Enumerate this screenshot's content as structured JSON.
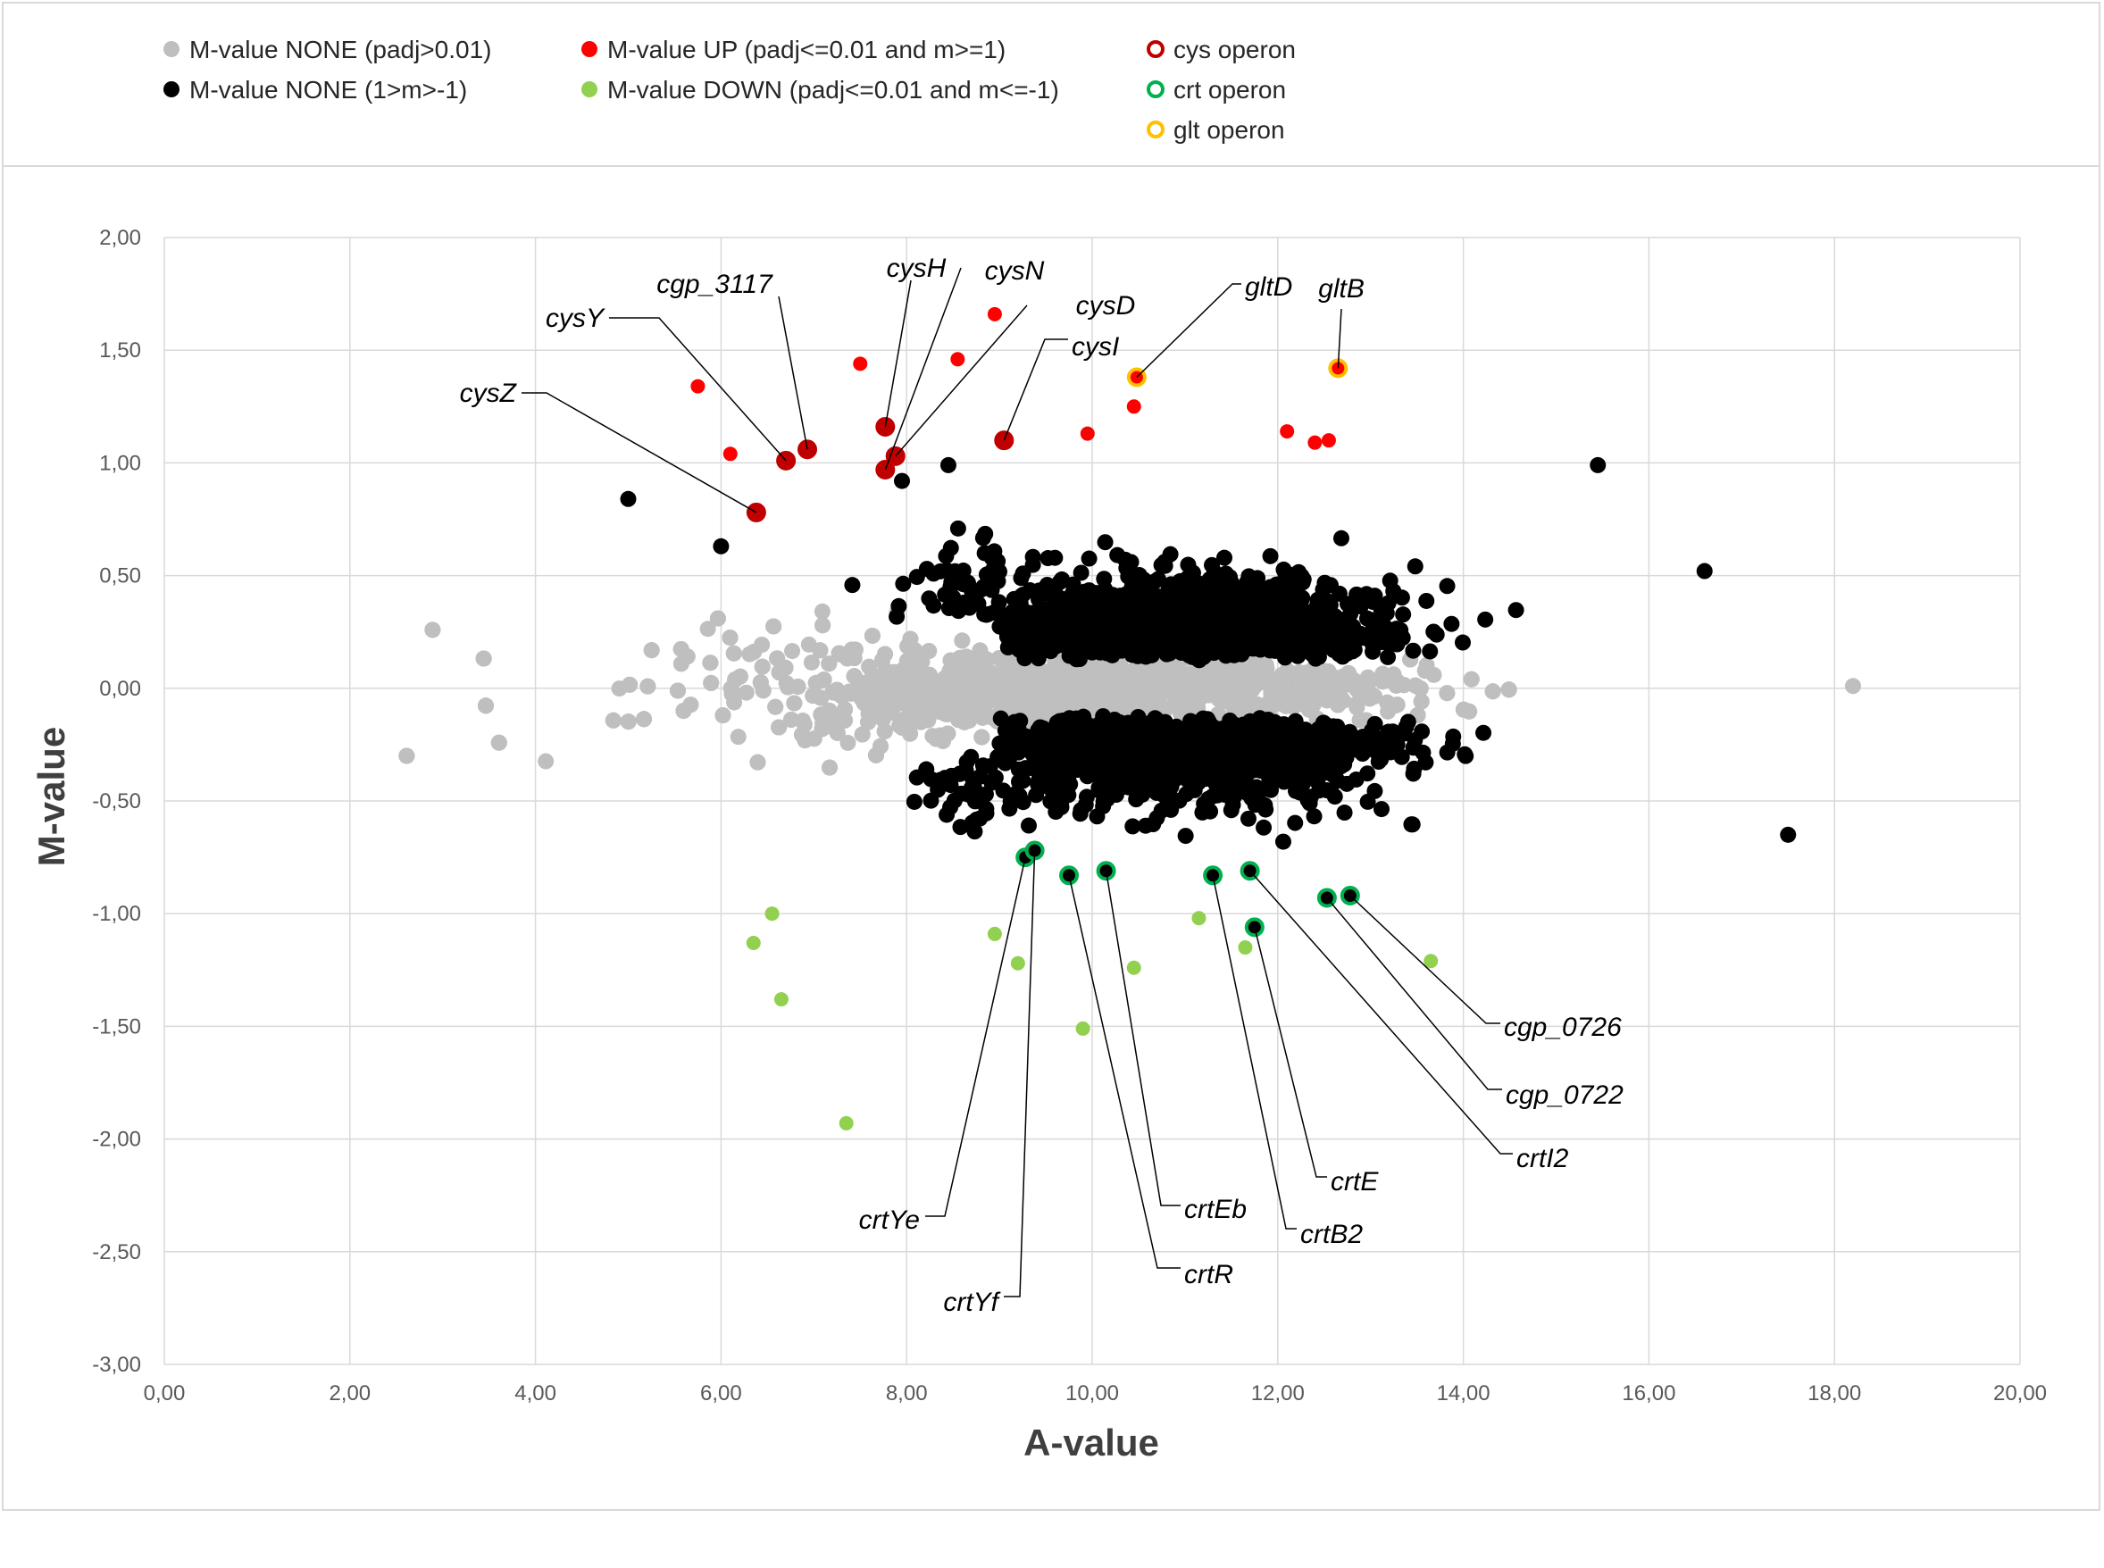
{
  "chart_data": {
    "type": "scatter",
    "xlabel": "A-value",
    "ylabel": "M-value",
    "xlim": [
      0,
      20
    ],
    "ylim": [
      -3,
      2
    ],
    "x_ticks": [
      "0,00",
      "2,00",
      "4,00",
      "6,00",
      "8,00",
      "10,00",
      "12,00",
      "14,00",
      "16,00",
      "18,00",
      "20,00"
    ],
    "y_ticks": [
      "2,00",
      "1,50",
      "1,00",
      "0,50",
      "0,00",
      "-0,50",
      "-1,00",
      "-1,50",
      "-2,00",
      "-2,50",
      "-3,00"
    ],
    "grid": true,
    "legend_position": "top",
    "legend": [
      {
        "key": "none_padj",
        "label": "M-value NONE (padj>0.01)",
        "color": "#bfbfbf",
        "style": "filled"
      },
      {
        "key": "up",
        "label": "M-value UP (padj<=0.01 and m>=1)",
        "color": "#ff0000",
        "style": "filled"
      },
      {
        "key": "cys",
        "label": "cys operon",
        "color": "#c00000",
        "style": "ring"
      },
      {
        "key": "none_m",
        "label": "M-value NONE (1>m>-1)",
        "color": "#000000",
        "style": "filled"
      },
      {
        "key": "down",
        "label": "M-value DOWN (padj<=0.01 and m<=-1)",
        "color": "#92d050",
        "style": "filled"
      },
      {
        "key": "crt",
        "label": "crt operon",
        "color": "#00b050",
        "style": "ring"
      },
      {
        "key": "glt",
        "label": "glt operon",
        "color": "#ffc000",
        "style": "ring"
      }
    ],
    "series": [
      {
        "name": "M-value UP (padj<=0.01 and m>=1)",
        "points": [
          [
            5.75,
            1.34
          ],
          [
            6.1,
            1.04
          ],
          [
            7.5,
            1.44
          ],
          [
            8.55,
            1.46
          ],
          [
            8.95,
            1.66
          ],
          [
            9.95,
            1.13
          ],
          [
            10.45,
            1.25
          ],
          [
            12.1,
            1.14
          ],
          [
            12.4,
            1.09
          ],
          [
            12.55,
            1.1
          ]
        ]
      },
      {
        "name": "M-value DOWN (padj<=0.01 and m<=-1)",
        "points": [
          [
            6.35,
            -1.13
          ],
          [
            6.55,
            -1.0
          ],
          [
            6.65,
            -1.38
          ],
          [
            7.35,
            -1.93
          ],
          [
            8.95,
            -1.09
          ],
          [
            9.2,
            -1.22
          ],
          [
            9.9,
            -1.51
          ],
          [
            10.45,
            -1.24
          ],
          [
            11.15,
            -1.02
          ],
          [
            11.65,
            -1.15
          ],
          [
            13.65,
            -1.21
          ]
        ]
      },
      {
        "name": "cys operon",
        "points": [
          {
            "label": "cysZ",
            "x": 6.38,
            "y": 0.78
          },
          {
            "label": "cysY",
            "x": 6.7,
            "y": 1.01
          },
          {
            "label": "cgp_3117",
            "x": 6.93,
            "y": 1.06
          },
          {
            "label": "cysH",
            "x": 7.77,
            "y": 1.16
          },
          {
            "label": "cysN",
            "x": 7.77,
            "y": 0.97
          },
          {
            "label": "cysD",
            "x": 7.88,
            "y": 1.03
          },
          {
            "label": "cysI",
            "x": 9.05,
            "y": 1.1
          }
        ]
      },
      {
        "name": "glt operon",
        "points": [
          {
            "label": "gltD",
            "x": 10.48,
            "y": 1.38
          },
          {
            "label": "gltB",
            "x": 12.65,
            "y": 1.42
          }
        ]
      },
      {
        "name": "crt operon",
        "points": [
          {
            "label": "crtYe",
            "x": 9.28,
            "y": -0.75
          },
          {
            "label": "crtYf",
            "x": 9.38,
            "y": -0.72
          },
          {
            "label": "crtR",
            "x": 9.75,
            "y": -0.83
          },
          {
            "label": "crtEb",
            "x": 10.15,
            "y": -0.81
          },
          {
            "label": "crtB2",
            "x": 11.3,
            "y": -0.83
          },
          {
            "label": "crtE",
            "x": 11.75,
            "y": -1.06
          },
          {
            "label": "crtI2",
            "x": 11.7,
            "y": -0.81
          },
          {
            "label": "cgp_0722",
            "x": 12.53,
            "y": -0.93
          },
          {
            "label": "cgp_0726",
            "x": 12.78,
            "y": -0.92
          }
        ]
      }
    ],
    "bulk_series_note_excluded": true
  }
}
